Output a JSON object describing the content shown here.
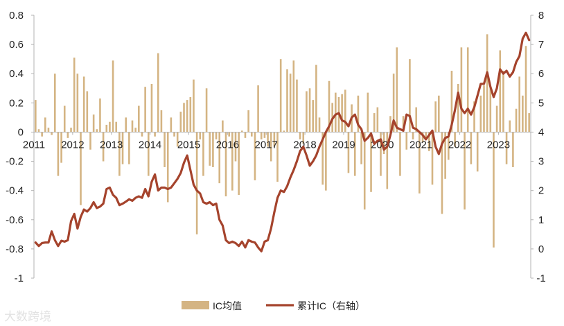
{
  "chart_data": {
    "type": "bar",
    "title": "",
    "xlabel": "",
    "ylabel": "",
    "ylim": [
      -1,
      0.8
    ],
    "y2lim": [
      -1,
      8
    ],
    "legend_position": "bottom-center",
    "grid": false,
    "x_tick_labels": [
      "2011",
      "2012",
      "2013",
      "2014",
      "2015",
      "2016",
      "2017",
      "2018",
      "2019",
      "2020",
      "2021",
      "2022",
      "2023"
    ],
    "y_tick_labels": [
      "0.8",
      "0.6",
      "0.4",
      "0.2",
      "0",
      "-0.2",
      "-0.4",
      "-0.6",
      "-0.8",
      "-1"
    ],
    "y2_tick_labels": [
      "8",
      "7",
      "6",
      "5",
      "4",
      "3",
      "2",
      "1",
      "0",
      "-1"
    ],
    "colors": {
      "bar": "#d4b483",
      "line": "#a5432c",
      "axis": "#b3b3b3"
    },
    "x_start": "2011-01",
    "series": [
      {
        "name": "IC均值",
        "type": "bar",
        "axis": "left",
        "values": [
          0.22,
          0.02,
          -0.03,
          0.1,
          0.03,
          -0.02,
          0.4,
          -0.3,
          -0.21,
          0.18,
          -0.04,
          0.03,
          0.51,
          0.4,
          -0.5,
          0.38,
          0.28,
          -0.12,
          0.12,
          0.02,
          0.23,
          -0.2,
          0.05,
          0.07,
          0.49,
          0.07,
          -0.3,
          -0.22,
          0.1,
          -0.22,
          0.08,
          0.03,
          0.18,
          -0.03,
          0.31,
          -0.3,
          0.33,
          -0.03,
          0.54,
          0.15,
          -0.24,
          -0.48,
          0.1,
          -0.03,
          -0.1,
          0.14,
          0.2,
          0.22,
          0.24,
          0.36,
          -0.7,
          -0.05,
          -0.3,
          0.3,
          -0.23,
          -0.24,
          -0.05,
          -0.35,
          0.08,
          -0.44,
          -0.03,
          -0.4,
          -0.2,
          -0.43,
          0.01,
          -0.04,
          0.15,
          -0.03,
          -0.33,
          0.32,
          -0.05,
          -0.04,
          -0.1,
          -0.2,
          -0.1,
          -0.34,
          0.5,
          0.01,
          0.43,
          0.4,
          0.49,
          0.36,
          -0.05,
          -0.08,
          0.28,
          0.3,
          0.22,
          0.46,
          0.1,
          -0.36,
          -0.4,
          0.35,
          0.2,
          0.27,
          0.24,
          0.26,
          0.29,
          -0.28,
          0.19,
          -0.3,
          0.25,
          -0.22,
          -0.53,
          0.27,
          -0.41,
          0.13,
          0.17,
          -0.3,
          -0.15,
          -0.39,
          0.11,
          0.4,
          0.58,
          -0.3,
          0.11,
          -0.12,
          0.5,
          -0.05,
          0.17,
          -0.42,
          -0.07,
          -0.05,
          -0.13,
          -0.36,
          0.21,
          0.25,
          -0.56,
          -0.32,
          -0.19,
          0.42,
          -0.1,
          0.33,
          0.58,
          -0.53,
          0.58,
          -0.22,
          0.21,
          -0.27,
          0.25,
          0.32,
          0.67,
          0.31,
          -0.79,
          0.18,
          0.56,
          0.42,
          -0.22,
          0.08,
          -0.24,
          0.16,
          0.38,
          0.25,
          0.59,
          0.13
        ]
      },
      {
        "name": "累计IC（右轴）",
        "type": "line",
        "axis": "right",
        "values": [
          0.22,
          0.1,
          0.2,
          0.22,
          0.22,
          0.6,
          0.3,
          0.1,
          0.28,
          0.25,
          0.3,
          0.95,
          1.2,
          0.7,
          1.1,
          1.35,
          1.28,
          1.4,
          1.6,
          1.4,
          1.45,
          1.55,
          2.05,
          2.1,
          1.85,
          1.75,
          1.5,
          1.55,
          1.62,
          1.7,
          1.65,
          1.75,
          1.8,
          1.75,
          2.05,
          1.8,
          2.3,
          2.55,
          2.0,
          2.1,
          2.1,
          2.05,
          2.1,
          2.25,
          2.4,
          2.6,
          2.95,
          3.2,
          2.7,
          2.2,
          2.0,
          1.9,
          1.6,
          1.55,
          1.6,
          1.5,
          1.55,
          1.0,
          0.8,
          0.3,
          0.2,
          0.25,
          0.2,
          0.1,
          0.25,
          0.05,
          0.3,
          0.25,
          0.22,
          0.05,
          -0.08,
          0.25,
          0.3,
          0.7,
          1.25,
          1.75,
          2.0,
          1.95,
          2.15,
          2.45,
          2.7,
          3.0,
          3.35,
          3.5,
          3.2,
          2.85,
          3.0,
          3.2,
          3.5,
          3.75,
          4.0,
          4.2,
          4.45,
          4.6,
          4.65,
          4.4,
          4.35,
          4.2,
          4.5,
          4.6,
          4.25,
          4.1,
          3.7,
          3.8,
          3.95,
          3.6,
          3.7,
          3.75,
          3.4,
          3.5,
          3.9,
          4.4,
          4.15,
          4.1,
          4.05,
          4.6,
          4.55,
          4.15,
          4.1,
          4.0,
          3.9,
          3.75,
          3.9,
          4.05,
          3.5,
          3.25,
          3.6,
          3.8,
          3.85,
          4.25,
          4.75,
          5.35,
          4.8,
          4.65,
          4.8,
          4.6,
          4.85,
          5.25,
          5.65,
          5.65,
          6.05,
          5.55,
          5.2,
          5.5,
          6.15,
          6.0,
          6.1,
          5.9,
          6.05,
          6.4,
          6.6,
          7.2,
          7.4,
          7.15
        ]
      }
    ]
  },
  "legend": {
    "bar_label": "IC均值",
    "line_label": "累计IC（右轴）"
  },
  "watermark": "大数跨境"
}
